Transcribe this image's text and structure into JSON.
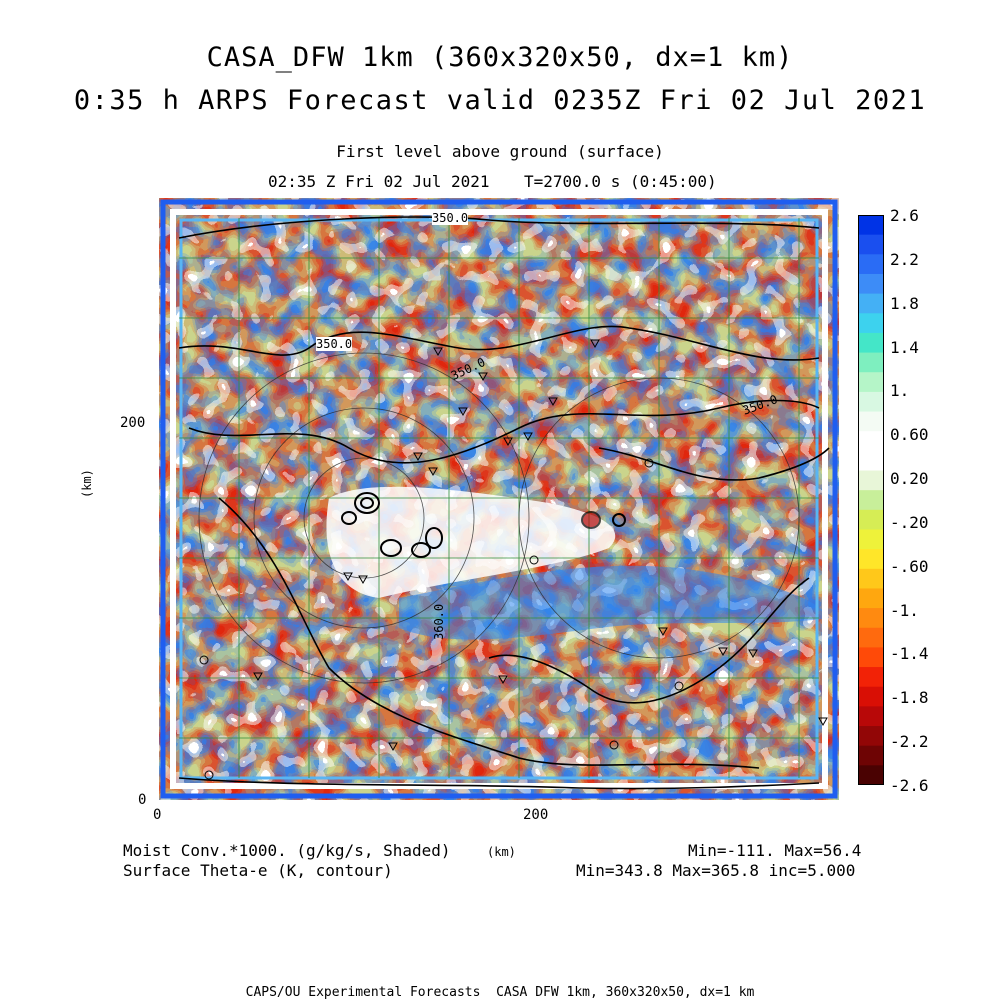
{
  "header": {
    "title_line1": "CASA_DFW 1km (360x320x50, dx=1 km)",
    "title_line2": "0:35 h ARPS Forecast valid 0235Z Fri 02 Jul 2021",
    "level": "First level above ground (surface)",
    "time_label": "02:35 Z Fri 02 Jul 2021",
    "model_time": "T=2700.0 s (0:45:00)"
  },
  "axes": {
    "x_unit": "(km)",
    "y_unit": "(km)",
    "x_ticks": [
      "0",
      "200"
    ],
    "y_ticks": [
      "0",
      "200"
    ]
  },
  "legend": {
    "shaded_label": "Moist Conv.*1000. (g/kg/s, Shaded)",
    "contour_label": "Surface Theta-e (K, contour)",
    "shaded_stats": "Min=-111. Max=56.4",
    "contour_stats": "Min=343.8 Max=365.8 inc=5.000"
  },
  "contour_labels": [
    "350.0",
    "350.0",
    "350.0",
    "350.0",
    "360.0",
    "350.0",
    "350"
  ],
  "colorbar": {
    "labels": [
      "2.6",
      "2.2",
      "1.8",
      "1.4",
      "1.",
      "0.60",
      "0.20",
      "-.20",
      "-.60",
      "-1.",
      "-1.4",
      "-1.8",
      "-2.2",
      "-2.6"
    ],
    "colors": [
      "#0033e6",
      "#1a4fef",
      "#2a6cf5",
      "#3d8cf7",
      "#44b0f5",
      "#3dd2ee",
      "#44e6c8",
      "#7eefbf",
      "#b5f5c8",
      "#d8f8e2",
      "#f4fbf4",
      "#ffffff",
      "#ffffff",
      "#e8f6d8",
      "#c8ef9a",
      "#d6ed55",
      "#eef23a",
      "#ffe629",
      "#ffc81a",
      "#ffa70f",
      "#ff8a10",
      "#ff6a0e",
      "#ff4a08",
      "#f22206",
      "#d90f05",
      "#b80808",
      "#920606",
      "#6e0404",
      "#4a0202"
    ]
  },
  "credit": "CAPS/OU Experimental Forecasts  CASA DFW 1km, 360x320x50, dx=1 km"
}
